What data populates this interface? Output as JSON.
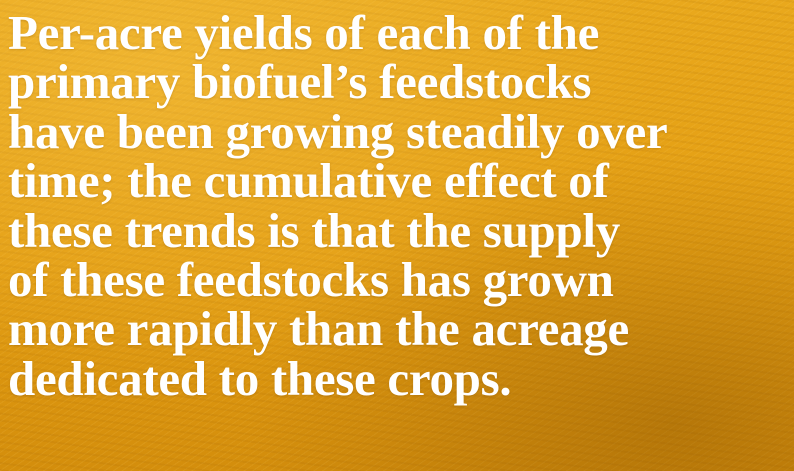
{
  "quote": {
    "lines": [
      "Per-acre yields of each of the",
      "primary biofuel’s feedstocks",
      "have been growing steadily over",
      "time; the cumulative effect of",
      "these trends is that the supply",
      "of these feedstocks has grown",
      "more rapidly than the acreage",
      "dedicated to these crops."
    ]
  }
}
